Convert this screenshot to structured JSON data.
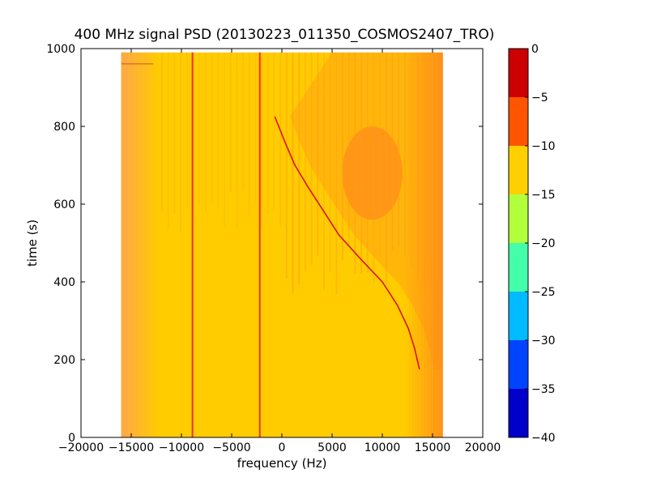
{
  "chart_data": {
    "type": "heatmap",
    "title": "400 MHz signal PSD (20130223_011350_COSMOS2407_TRO)",
    "xlabel": "frequency (Hz)",
    "ylabel": "time (s)",
    "xlim": [
      -20000,
      20000
    ],
    "ylim": [
      0,
      1000
    ],
    "x_ticks": [
      -20000,
      -15000,
      -10000,
      -5000,
      0,
      5000,
      10000,
      15000,
      20000
    ],
    "x_tick_labels": [
      "−20000",
      "−15000",
      "−10000",
      "−5000",
      "0",
      "5000",
      "10000",
      "15000",
      "20000"
    ],
    "y_ticks": [
      0,
      200,
      400,
      600,
      800,
      1000
    ],
    "y_tick_labels": [
      "0",
      "200",
      "400",
      "600",
      "800",
      "1000"
    ],
    "data_extent": {
      "x": [
        -16000,
        16000
      ],
      "y": [
        0,
        990
      ]
    },
    "background_level": -12.5,
    "edge_level": -9,
    "colorbar": {
      "min": -40,
      "max": 0,
      "levels": [
        -40,
        -35,
        -30,
        -25,
        -20,
        -15,
        -10,
        -5,
        0
      ],
      "tick_labels": [
        "−40",
        "−35",
        "−30",
        "−25",
        "−20",
        "−15",
        "−10",
        "−5",
        "0"
      ],
      "colors": [
        "#0000c8",
        "#0044ff",
        "#00bbff",
        "#44ffaa",
        "#b2ff3c",
        "#ffd000",
        "#ff5500",
        "#cc0000"
      ]
    },
    "colors": {
      "background": "#ffcc00",
      "edge": "#ffaa44",
      "band": "#ff8c1a",
      "streak": "#ff9a22",
      "line": "#ee3322",
      "trace": "#dd1111"
    },
    "vertical_lines": [
      {
        "x": -8900,
        "t_start": 0,
        "t_end": 990
      },
      {
        "x": -2200,
        "t_start": 0,
        "t_end": 990
      }
    ],
    "doppler_trace": [
      {
        "time": 825,
        "freq": -700
      },
      {
        "time": 760,
        "freq": 300
      },
      {
        "time": 700,
        "freq": 1300
      },
      {
        "time": 640,
        "freq": 2700
      },
      {
        "time": 580,
        "freq": 4200
      },
      {
        "time": 520,
        "freq": 5700
      },
      {
        "time": 460,
        "freq": 7800
      },
      {
        "time": 400,
        "freq": 10000
      },
      {
        "time": 340,
        "freq": 11500
      },
      {
        "time": 280,
        "freq": 12600
      },
      {
        "time": 230,
        "freq": 13200
      },
      {
        "time": 175,
        "freq": 13700
      }
    ],
    "interference_band": {
      "freq": [
        6000,
        12000
      ],
      "time": [
        560,
        800
      ]
    }
  }
}
